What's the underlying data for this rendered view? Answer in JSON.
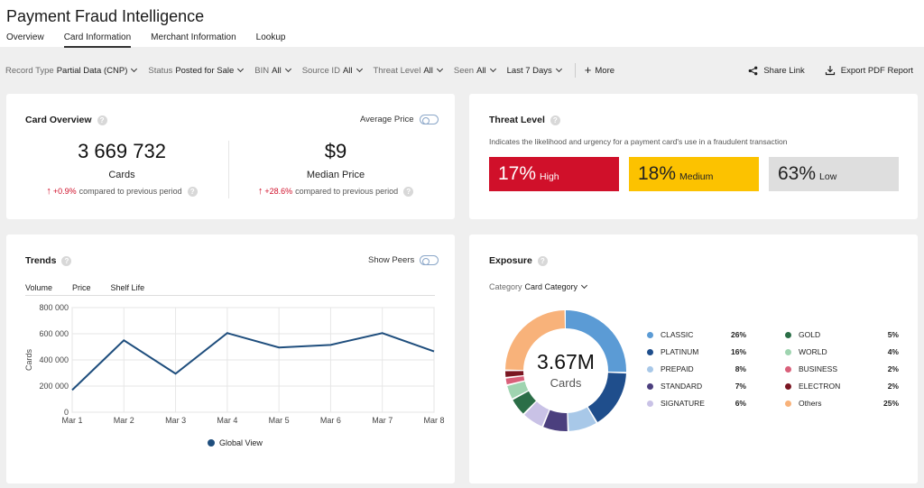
{
  "header": {
    "title": "Payment Fraud Intelligence",
    "tabs": [
      {
        "label": "Overview"
      },
      {
        "label": "Card Information"
      },
      {
        "label": "Merchant Information"
      },
      {
        "label": "Lookup"
      }
    ],
    "active_tab": "Card Information"
  },
  "filters": [
    {
      "label": "Record Type",
      "value": "Partial Data (CNP)"
    },
    {
      "label": "Status",
      "value": "Posted for Sale"
    },
    {
      "label": "BIN",
      "value": "All"
    },
    {
      "label": "Source ID",
      "value": "All"
    },
    {
      "label": "Threat Level",
      "value": "All"
    },
    {
      "label": "Seen",
      "value": "All"
    },
    {
      "label": "",
      "value": "Last 7 Days"
    }
  ],
  "more_label": "More",
  "actions": {
    "share": "Share Link",
    "export": "Export PDF Report"
  },
  "card_overview": {
    "title": "Card Overview",
    "toggle_label": "Average Price",
    "cards": {
      "value": "3 669 732",
      "label": "Cards",
      "delta": "+0.9%",
      "delta_text": "compared to previous period"
    },
    "price": {
      "value": "$9",
      "label": "Median Price",
      "delta": "+28.6%",
      "delta_text": "compared to previous period"
    }
  },
  "threat_level": {
    "title": "Threat Level",
    "description": "Indicates the likelihood and urgency for a payment card's use in a fraudulent transaction",
    "levels": [
      {
        "pct": "17%",
        "label": "High",
        "color": "#d0102a",
        "text_color": "#ffffff"
      },
      {
        "pct": "18%",
        "label": "Medium",
        "color": "#fcc200",
        "text_color": "#222222"
      },
      {
        "pct": "63%",
        "label": "Low",
        "color": "#dedede",
        "text_color": "#222222"
      }
    ]
  },
  "trends": {
    "title": "Trends",
    "toggle_label": "Show Peers",
    "subtabs": [
      "Volume",
      "Price",
      "Shelf Life"
    ],
    "active_subtab": "Volume"
  },
  "chart_data": {
    "type": "line",
    "x": [
      "Mar 1",
      "Mar 2",
      "Mar 3",
      "Mar 4",
      "Mar 5",
      "Mar 6",
      "Mar 7",
      "Mar 8"
    ],
    "y_ticks": [
      "800 000",
      "600 000",
      "400 000",
      "200 000",
      "0"
    ],
    "series": [
      {
        "name": "Global View",
        "color": "#1f4e7d",
        "values": [
          170000,
          550000,
          295000,
          605000,
          495000,
          515000,
          605000,
          465000
        ]
      }
    ],
    "ylabel": "Cards",
    "ylim": [
      0,
      800000
    ],
    "grid": true,
    "legend": "bottom"
  },
  "exposure": {
    "title": "Exposure",
    "category_label": "Category",
    "category_value": "Card Category",
    "center_value": "3.67M",
    "center_label": "Cards",
    "items": [
      {
        "name": "CLASSIC",
        "pct": "26%",
        "value": 26,
        "color": "#5b9bd5"
      },
      {
        "name": "PLATINUM",
        "pct": "16%",
        "value": 16,
        "color": "#1f4e8c"
      },
      {
        "name": "PREPAID",
        "pct": "8%",
        "value": 8,
        "color": "#a8c8e8"
      },
      {
        "name": "STANDARD",
        "pct": "7%",
        "value": 7,
        "color": "#4b3f7e"
      },
      {
        "name": "SIGNATURE",
        "pct": "6%",
        "value": 6,
        "color": "#c9c2e6"
      },
      {
        "name": "GOLD",
        "pct": "5%",
        "value": 5,
        "color": "#2b6e47"
      },
      {
        "name": "WORLD",
        "pct": "4%",
        "value": 4,
        "color": "#9fd4b0"
      },
      {
        "name": "BUSINESS",
        "pct": "2%",
        "value": 2,
        "color": "#d9607a"
      },
      {
        "name": "ELECTRON",
        "pct": "2%",
        "value": 2,
        "color": "#7a1622"
      },
      {
        "name": "Others",
        "pct": "25%",
        "value": 25,
        "color": "#f8b27a"
      }
    ]
  }
}
